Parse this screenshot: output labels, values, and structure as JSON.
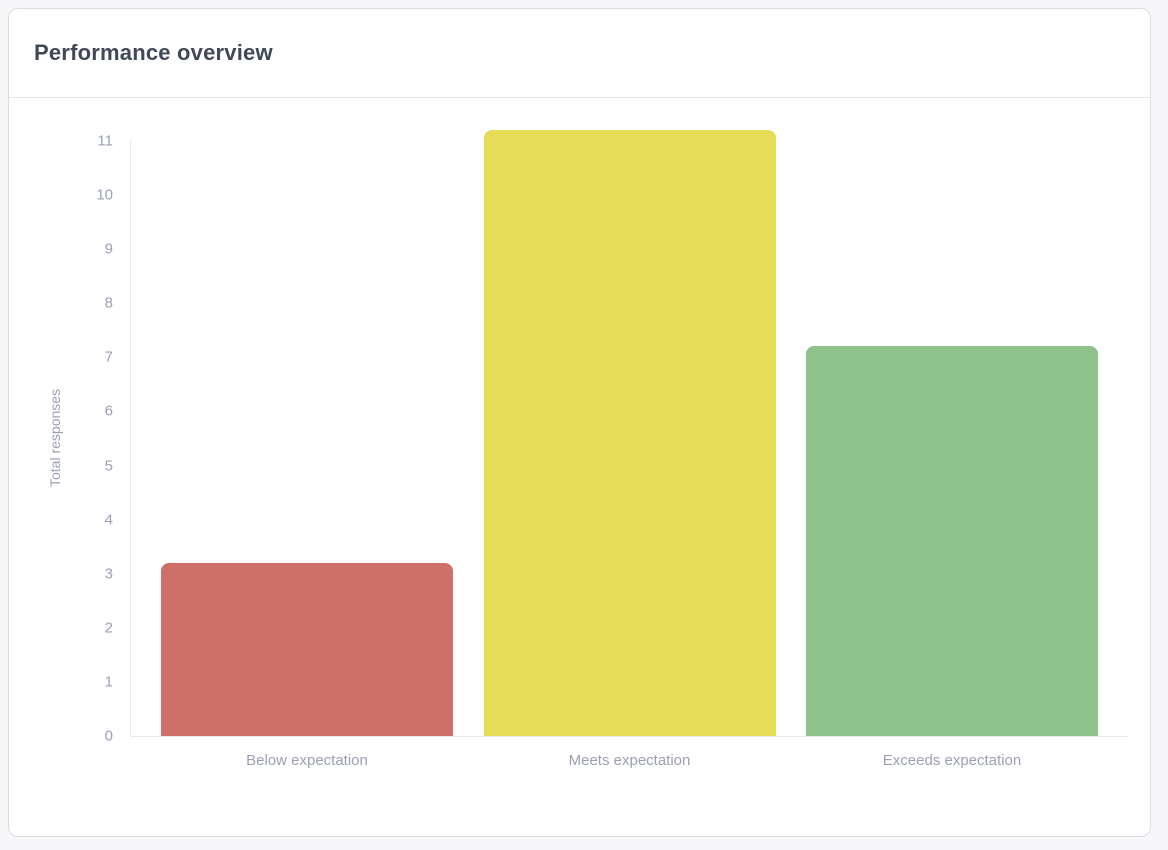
{
  "card": {
    "title": "Performance overview"
  },
  "chart_data": {
    "type": "bar",
    "title": "Performance overview",
    "categories": [
      "Below expectation",
      "Meets expectation",
      "Exceeds expectation"
    ],
    "values": [
      3.2,
      11.2,
      7.2
    ],
    "bar_colors": [
      "#ce6f68",
      "#e6dc58",
      "#90c28d"
    ],
    "xlabel": "",
    "ylabel": "Total responses",
    "yticks": [
      0,
      1,
      2,
      3,
      4,
      5,
      6,
      7,
      8,
      9,
      10,
      11
    ],
    "ylim": [
      0,
      11.2
    ],
    "grid": false,
    "legend": false
  },
  "colors": {
    "page_background": "#f7f7f9",
    "card_background": "#ffffff",
    "card_border": "#dbdce3",
    "title_text": "#414859",
    "axis_text": "#9aa1b3",
    "axis_line": "#e8e9ef",
    "bar_below": "#ce6f68",
    "bar_meets": "#e6dc58",
    "bar_exceeds": "#90c28d"
  }
}
